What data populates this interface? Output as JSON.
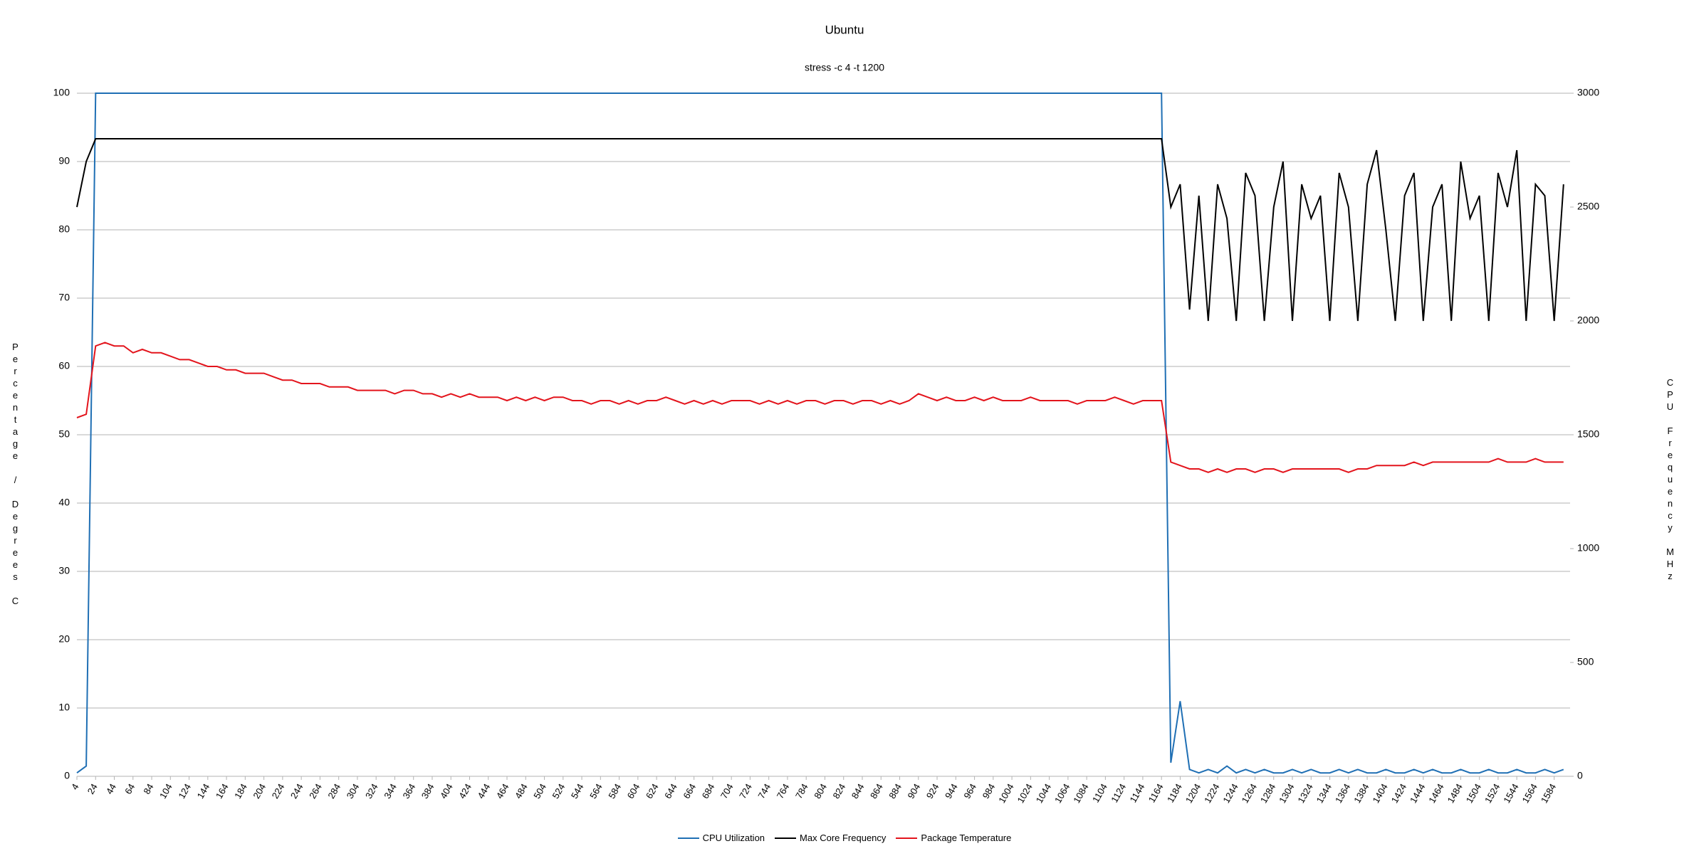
{
  "chart_data": {
    "type": "line",
    "title": "Ubuntu",
    "subtitle": "stress -c 4 -t 1200",
    "y_label": "Percentage / Degrees C",
    "y2_label": "CPU Frequency MHz",
    "x": [
      4,
      14,
      24,
      34,
      44,
      54,
      64,
      74,
      84,
      94,
      104,
      114,
      124,
      134,
      144,
      154,
      164,
      174,
      184,
      194,
      204,
      214,
      224,
      234,
      244,
      254,
      264,
      274,
      284,
      294,
      304,
      314,
      324,
      334,
      344,
      354,
      364,
      374,
      384,
      394,
      404,
      414,
      424,
      434,
      444,
      454,
      464,
      474,
      484,
      494,
      504,
      514,
      524,
      534,
      544,
      554,
      564,
      574,
      584,
      594,
      604,
      614,
      624,
      634,
      644,
      654,
      664,
      674,
      684,
      694,
      704,
      714,
      724,
      734,
      744,
      754,
      764,
      774,
      784,
      794,
      804,
      814,
      824,
      834,
      844,
      854,
      864,
      874,
      884,
      894,
      904,
      914,
      924,
      934,
      944,
      954,
      964,
      974,
      984,
      994,
      1004,
      1014,
      1024,
      1034,
      1044,
      1054,
      1064,
      1074,
      1084,
      1094,
      1104,
      1114,
      1124,
      1134,
      1144,
      1154,
      1164,
      1174,
      1184,
      1194,
      1204,
      1214,
      1224,
      1234,
      1244,
      1254,
      1264,
      1274,
      1284,
      1294,
      1304,
      1314,
      1324,
      1334,
      1344,
      1354,
      1364,
      1374,
      1384,
      1394,
      1404,
      1414,
      1424,
      1434,
      1444,
      1454,
      1464,
      1474,
      1484,
      1494,
      1504,
      1514,
      1524,
      1534,
      1544,
      1554,
      1564,
      1574,
      1584,
      1594
    ],
    "xlim": [
      4,
      1601
    ],
    "xticks": [
      4,
      24,
      44,
      64,
      84,
      104,
      124,
      144,
      164,
      184,
      204,
      224,
      244,
      264,
      284,
      304,
      324,
      344,
      364,
      384,
      404,
      424,
      444,
      464,
      484,
      504,
      524,
      544,
      564,
      584,
      604,
      624,
      644,
      664,
      684,
      704,
      724,
      744,
      764,
      784,
      804,
      824,
      844,
      864,
      884,
      904,
      924,
      944,
      964,
      984,
      1004,
      1024,
      1044,
      1064,
      1084,
      1104,
      1124,
      1144,
      1164,
      1184,
      1204,
      1224,
      1244,
      1264,
      1284,
      1304,
      1324,
      1344,
      1364,
      1384,
      1404,
      1424,
      1444,
      1464,
      1484,
      1504,
      1524,
      1544,
      1564,
      1584
    ],
    "ylim": [
      0,
      100
    ],
    "yticks": [
      0,
      10,
      20,
      30,
      40,
      50,
      60,
      70,
      80,
      90,
      100
    ],
    "y2lim": [
      0,
      3000
    ],
    "y2ticks": [
      0,
      500,
      1000,
      1500,
      2000,
      2500,
      3000
    ],
    "grid": true,
    "legend": "bottom",
    "series": [
      {
        "name": "CPU Utilization",
        "color": "#1f6fb4",
        "values": [
          0.5,
          1.5,
          100,
          100,
          100,
          100,
          100,
          100,
          100,
          100,
          100,
          100,
          100,
          100,
          100,
          100,
          100,
          100,
          100,
          100,
          100,
          100,
          100,
          100,
          100,
          100,
          100,
          100,
          100,
          100,
          100,
          100,
          100,
          100,
          100,
          100,
          100,
          100,
          100,
          100,
          100,
          100,
          100,
          100,
          100,
          100,
          100,
          100,
          100,
          100,
          100,
          100,
          100,
          100,
          100,
          100,
          100,
          100,
          100,
          100,
          100,
          100,
          100,
          100,
          100,
          100,
          100,
          100,
          100,
          100,
          100,
          100,
          100,
          100,
          100,
          100,
          100,
          100,
          100,
          100,
          100,
          100,
          100,
          100,
          100,
          100,
          100,
          100,
          100,
          100,
          100,
          100,
          100,
          100,
          100,
          100,
          100,
          100,
          100,
          100,
          100,
          100,
          100,
          100,
          100,
          100,
          100,
          100,
          100,
          100,
          100,
          100,
          100,
          100,
          100,
          100,
          100,
          2,
          11,
          1,
          0.5,
          1,
          0.5,
          1.5,
          0.5,
          1,
          0.5,
          1,
          0.5,
          0.5,
          1,
          0.5,
          1,
          0.5,
          0.5,
          1,
          0.5,
          1,
          0.5,
          0.5,
          1,
          0.5,
          0.5,
          1,
          0.5,
          1,
          0.5,
          0.5,
          1,
          0.5,
          0.5,
          1,
          0.5,
          0.5,
          1,
          0.5,
          0.5,
          1,
          0.5,
          1
        ]
      },
      {
        "name": "Max Core Frequency",
        "color": "#000000",
        "axis": "y2",
        "values": [
          2500,
          2700,
          2800,
          2800,
          2800,
          2800,
          2800,
          2800,
          2800,
          2800,
          2800,
          2800,
          2800,
          2800,
          2800,
          2800,
          2800,
          2800,
          2800,
          2800,
          2800,
          2800,
          2800,
          2800,
          2800,
          2800,
          2800,
          2800,
          2800,
          2800,
          2800,
          2800,
          2800,
          2800,
          2800,
          2800,
          2800,
          2800,
          2800,
          2800,
          2800,
          2800,
          2800,
          2800,
          2800,
          2800,
          2800,
          2800,
          2800,
          2800,
          2800,
          2800,
          2800,
          2800,
          2800,
          2800,
          2800,
          2800,
          2800,
          2800,
          2800,
          2800,
          2800,
          2800,
          2800,
          2800,
          2800,
          2800,
          2800,
          2800,
          2800,
          2800,
          2800,
          2800,
          2800,
          2800,
          2800,
          2800,
          2800,
          2800,
          2800,
          2800,
          2800,
          2800,
          2800,
          2800,
          2800,
          2800,
          2800,
          2800,
          2800,
          2800,
          2800,
          2800,
          2800,
          2800,
          2800,
          2800,
          2800,
          2800,
          2800,
          2800,
          2800,
          2800,
          2800,
          2800,
          2800,
          2800,
          2800,
          2800,
          2800,
          2800,
          2800,
          2800,
          2800,
          2800,
          2800,
          2500,
          2600,
          2050,
          2550,
          2000,
          2600,
          2450,
          2000,
          2650,
          2550,
          2000,
          2500,
          2700,
          2000,
          2600,
          2450,
          2550,
          2000,
          2650,
          2500,
          2000,
          2600,
          2750,
          2400,
          2000,
          2550,
          2650,
          2000,
          2500,
          2600,
          2000,
          2700,
          2450,
          2550,
          2000,
          2650,
          2500,
          2750,
          2000,
          2600,
          2550,
          2000,
          2600
        ]
      },
      {
        "name": "Package Temperature",
        "color": "#e3141c",
        "values": [
          52.5,
          53,
          63,
          63.5,
          63,
          63,
          62,
          62.5,
          62,
          62,
          61.5,
          61,
          61,
          60.5,
          60,
          60,
          59.5,
          59.5,
          59,
          59,
          59,
          58.5,
          58,
          58,
          57.5,
          57.5,
          57.5,
          57,
          57,
          57,
          56.5,
          56.5,
          56.5,
          56.5,
          56,
          56.5,
          56.5,
          56,
          56,
          55.5,
          56,
          55.5,
          56,
          55.5,
          55.5,
          55.5,
          55,
          55.5,
          55,
          55.5,
          55,
          55.5,
          55.5,
          55,
          55,
          54.5,
          55,
          55,
          54.5,
          55,
          54.5,
          55,
          55,
          55.5,
          55,
          54.5,
          55,
          54.5,
          55,
          54.5,
          55,
          55,
          55,
          54.5,
          55,
          54.5,
          55,
          54.5,
          55,
          55,
          54.5,
          55,
          55,
          54.5,
          55,
          55,
          54.5,
          55,
          54.5,
          55,
          56,
          55.5,
          55,
          55.5,
          55,
          55,
          55.5,
          55,
          55.5,
          55,
          55,
          55,
          55.5,
          55,
          55,
          55,
          55,
          54.5,
          55,
          55,
          55,
          55.5,
          55,
          54.5,
          55,
          55,
          55,
          46,
          45.5,
          45,
          45,
          44.5,
          45,
          44.5,
          45,
          45,
          44.5,
          45,
          45,
          44.5,
          45,
          45,
          45,
          45,
          45,
          45,
          44.5,
          45,
          45,
          45.5,
          45.5,
          45.5,
          45.5,
          46,
          45.5,
          46,
          46,
          46,
          46,
          46,
          46,
          46,
          46.5,
          46,
          46,
          46,
          46.5,
          46,
          46,
          46
        ]
      }
    ]
  }
}
